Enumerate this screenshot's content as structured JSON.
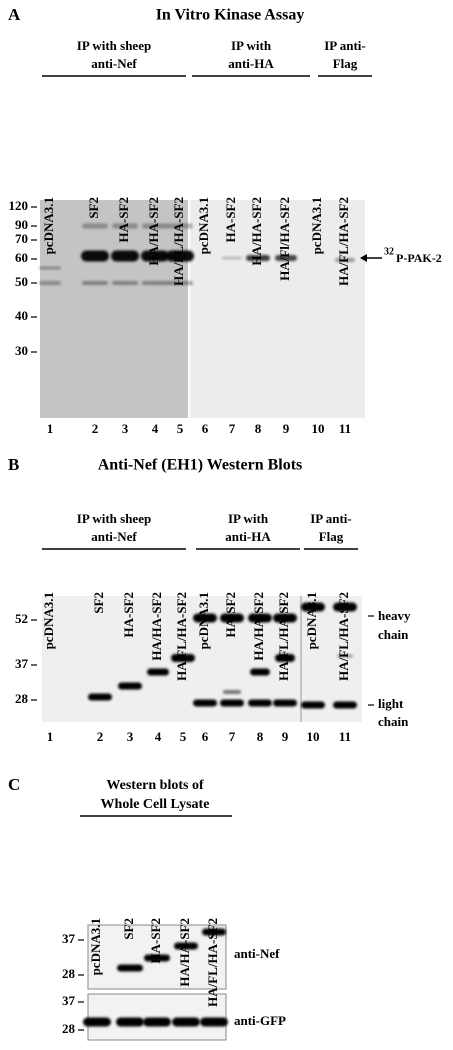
{
  "panels": [
    {
      "label": "A",
      "title": "In Vitro Kinase Assay",
      "groups": [
        {
          "lines": [
            "IP with sheep",
            "anti-Nef"
          ]
        },
        {
          "lines": [
            "IP with",
            "anti-HA"
          ]
        },
        {
          "lines": [
            "IP anti-",
            "Flag"
          ]
        }
      ],
      "lanes": [
        "pcDNA3.1",
        "SF2",
        "HA-SF2",
        "HA/HA-SF2",
        "HA/FL/HA-SF2",
        "pcDNA3.1",
        "HA-SF2",
        "HA/HA-SF2",
        "HA/Fl/HA-SF2",
        "pcDNA3.1",
        "HA/FL/HA-SF2"
      ],
      "lane_numbers": [
        "1",
        "2",
        "3",
        "4",
        "5",
        "6",
        "7",
        "8",
        "9",
        "10",
        "11"
      ],
      "markers": [
        "120",
        "90",
        "70",
        "60",
        "50",
        "40",
        "30"
      ],
      "annotation": {
        "superscript": "32",
        "text": "P-PAK-2"
      }
    },
    {
      "label": "B",
      "title": "Anti-Nef (EH1) Western Blots",
      "groups": [
        {
          "lines": [
            "IP with sheep",
            "anti-Nef"
          ]
        },
        {
          "lines": [
            "IP with",
            "anti-HA"
          ]
        },
        {
          "lines": [
            "IP anti-",
            "Flag"
          ]
        }
      ],
      "lanes": [
        "pcDNA3.1",
        "SF2",
        "HA-SF2",
        "HA/HA-SF2",
        "HA/FL/HA-SF2",
        "pcDNA3.1",
        "HA-SF2",
        "HA/HA-SF2",
        "HA/FL/HA-SF2",
        "pcDNA3.1",
        "HA/FL/HA-SF2"
      ],
      "lane_numbers": [
        "1",
        "2",
        "3",
        "4",
        "5",
        "6",
        "7",
        "8",
        "9",
        "10",
        "11"
      ],
      "markers": [
        "52",
        "37",
        "28"
      ],
      "heavy_chain": [
        "heavy",
        "chain"
      ],
      "light_chain": [
        "light",
        "chain"
      ]
    },
    {
      "label": "C",
      "title_lines": [
        "Western blots of",
        "Whole Cell Lysate"
      ],
      "lanes": [
        "pcDNA3.1",
        "SF2",
        "HA-SF2",
        "HA/HA-SF2",
        "HA/FL/HA-SF2"
      ],
      "blots": [
        {
          "markers": [
            "37",
            "28"
          ],
          "label": "anti-Nef"
        },
        {
          "markers": [
            "37",
            "28"
          ],
          "label": "anti-GFP"
        }
      ]
    }
  ]
}
